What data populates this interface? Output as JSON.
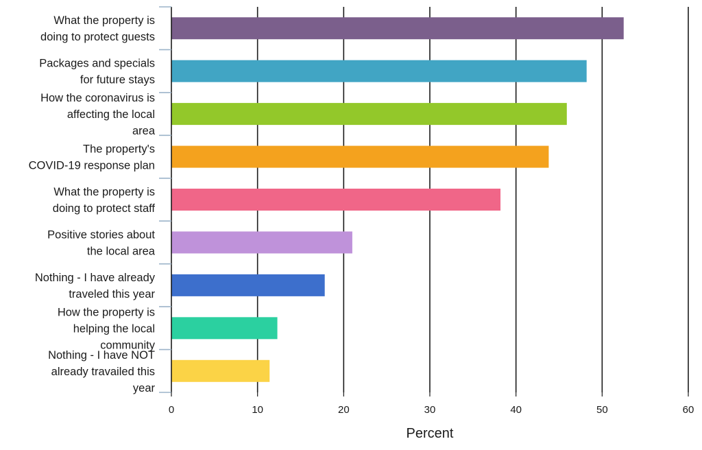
{
  "chart_data": {
    "type": "bar",
    "orientation": "horizontal",
    "categories": [
      "What the property is doing to protect guests",
      "Packages and specials for future stays",
      "How the coronavirus is affecting the local area",
      "The property's COVID-19 response plan",
      "What the property is doing to protect staff",
      "Positive stories about the local area",
      "Nothing - I have already traveled this year",
      "How the property is helping the local community",
      "Nothing - I have NOT already travailed this year"
    ],
    "category_lines": [
      [
        "What the property is",
        "doing to protect guests"
      ],
      [
        "Packages and specials",
        "for future stays"
      ],
      [
        "How the coronavirus is",
        "affecting the local",
        "area"
      ],
      [
        "The property's",
        "COVID-19 response plan"
      ],
      [
        "What the property is",
        "doing to protect staff"
      ],
      [
        "Positive stories about",
        "the local area"
      ],
      [
        "Nothing - I have already",
        "traveled this year"
      ],
      [
        "How the property is",
        "helping the local",
        "community"
      ],
      [
        "Nothing - I have NOT",
        "already travailed this",
        "year"
      ]
    ],
    "values": [
      52.5,
      48.2,
      45.9,
      43.8,
      38.2,
      21.0,
      17.8,
      12.3,
      11.4
    ],
    "colors": [
      "#7b5f8c",
      "#41a5c4",
      "#93c82a",
      "#f4a21e",
      "#f06688",
      "#bf92da",
      "#3d6fcc",
      "#2bd0a0",
      "#fbd346"
    ],
    "xlabel": "Percent",
    "ylabel": "",
    "title": "",
    "xlim": [
      0,
      60
    ],
    "xticks": [
      0,
      10,
      20,
      30,
      40,
      50,
      60
    ],
    "grid": "vertical"
  }
}
